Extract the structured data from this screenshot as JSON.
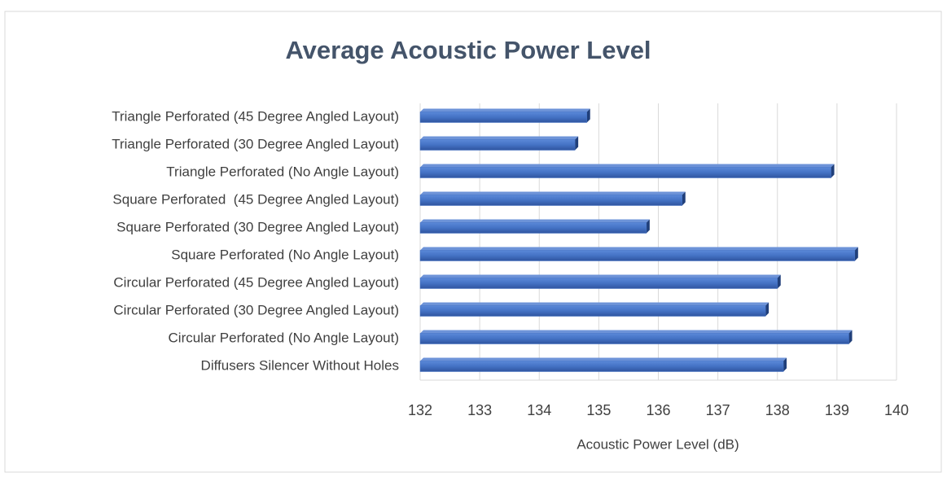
{
  "chart_data": {
    "type": "bar",
    "orientation": "horizontal",
    "title": "Average Acoustic Power Level",
    "x_label": "Acoustic Power Level (dB)",
    "categories": [
      "Diffusers Silencer Without Holes",
      "Circular Perforated (No Angle Layout)",
      "Circular Perforated (30 Degree Angled Layout)",
      "Circular Perforated (45 Degree Angled Layout)",
      "Square Perforated (No Angle Layout)",
      "Square Perforated (30 Degree Angled Layout)",
      "Square Perforated  (45 Degree Angled Layout)",
      "Triangle Perforated (No Angle Layout)",
      "Triangle Perforated (30 Degree Angled Layout)",
      "Triangle Perforated (45 Degree Angled Layout)"
    ],
    "values": [
      138.1,
      139.2,
      137.8,
      138.0,
      139.3,
      135.8,
      136.4,
      138.9,
      134.6,
      134.8
    ],
    "color": "#4472c4",
    "xlim": [
      132,
      140
    ],
    "xticks": [
      132,
      133,
      134,
      135,
      136,
      137,
      138,
      139,
      140
    ],
    "grid": true
  }
}
